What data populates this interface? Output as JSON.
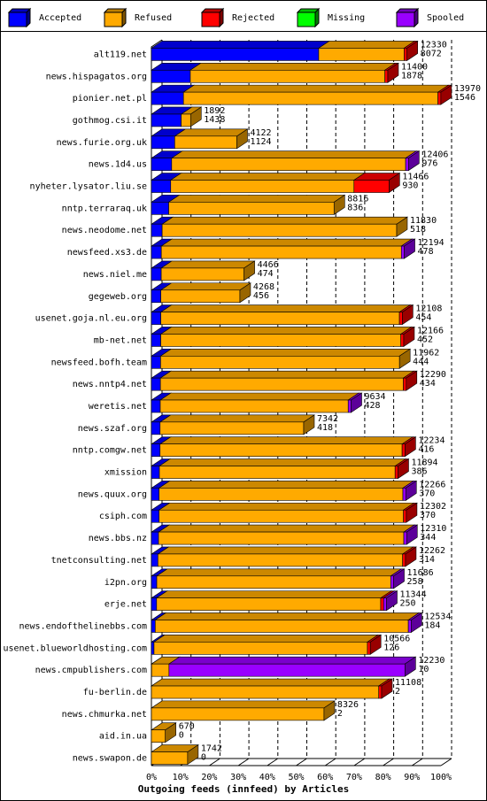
{
  "chart_data": {
    "type": "bar3d_stacked_horizontal",
    "x_label": "Outgoing feeds (innfeed) by Articles",
    "categories": [
      "alt119.net",
      "news.hispagatos.org",
      "pionier.net.pl",
      "gothmog.csi.it",
      "news.furie.org.uk",
      "news.1d4.us",
      "nyheter.lysator.liu.se",
      "nntp.terraraq.uk",
      "news.neodome.net",
      "newsfeed.xs3.de",
      "news.niel.me",
      "gegeweb.org",
      "usenet.goja.nl.eu.org",
      "mb-net.net",
      "newsfeed.bofh.team",
      "news.nntp4.net",
      "weretis.net",
      "news.szaf.org",
      "nntp.comgw.net",
      "xmission",
      "news.quux.org",
      "csiph.com",
      "news.bbs.nz",
      "tnetconsulting.net",
      "i2pn.org",
      "erje.net",
      "news.endofthelinebbs.com",
      "usenet.blueworldhosting.com",
      "news.cmpublishers.com",
      "fu-berlin.de",
      "news.chmurka.net",
      "aid.in.ua",
      "news.swapon.de"
    ],
    "offered": [
      12330,
      11400,
      13970,
      1892,
      4122,
      12406,
      11466,
      8816,
      11830,
      12194,
      4466,
      4268,
      12108,
      12166,
      11962,
      12290,
      9634,
      7342,
      12234,
      11894,
      12266,
      12302,
      12310,
      12262,
      11686,
      11344,
      12534,
      10566,
      12230,
      11108,
      8326,
      670,
      1742
    ],
    "accepted_count": [
      8072,
      1878,
      1546,
      1438,
      1124,
      976,
      930,
      836,
      518,
      478,
      474,
      456,
      454,
      452,
      444,
      434,
      428,
      418,
      416,
      386,
      370,
      370,
      344,
      314,
      258,
      250,
      184,
      126,
      10,
      2,
      2,
      0,
      0
    ],
    "series": [
      {
        "name": "Accepted",
        "color": "#0000ff",
        "values": [
          57.78,
          13.44,
          11.07,
          10.29,
          8.05,
          6.99,
          6.66,
          5.98,
          3.71,
          3.42,
          3.39,
          3.26,
          3.25,
          3.24,
          3.18,
          3.11,
          3.06,
          2.99,
          2.98,
          2.76,
          2.65,
          2.65,
          2.46,
          2.25,
          1.85,
          1.79,
          1.32,
          0.9,
          0.07,
          0.01,
          0.01,
          0,
          0
        ]
      },
      {
        "name": "Refused",
        "color": "#ffaa00",
        "values": [
          29.5,
          67.2,
          87.9,
          3.25,
          21.46,
          80.8,
          63.3,
          57.1,
          81.0,
          82.9,
          28.6,
          27.3,
          82.4,
          82.9,
          82.5,
          83.9,
          64.9,
          49.6,
          83.6,
          81.4,
          84.2,
          84.4,
          84.7,
          84.5,
          80.8,
          77.4,
          87.4,
          73.7,
          6.0,
          78.5,
          59.6,
          4.8,
          12.5
        ]
      },
      {
        "name": "Rejected",
        "color": "#ff0000",
        "values": [
          1,
          1,
          1,
          0,
          0,
          0,
          12.1,
          0,
          0,
          0,
          0,
          0,
          1,
          1,
          0,
          1,
          0,
          0,
          1,
          1,
          0,
          1,
          0,
          1,
          0,
          1,
          0,
          1,
          0,
          1,
          0,
          0,
          0
        ]
      },
      {
        "name": "Missing",
        "color": "#00ff00",
        "values": [
          0,
          0,
          0,
          0,
          0,
          0,
          0,
          0,
          0,
          0,
          0,
          0,
          0,
          0,
          0,
          0,
          0,
          0,
          0,
          0,
          0,
          0,
          0,
          0,
          0,
          0,
          0,
          0,
          0,
          0,
          0,
          0,
          0
        ]
      },
      {
        "name": "Spooled",
        "color": "#9900ff",
        "values": [
          0,
          0,
          0,
          0,
          0,
          1,
          0,
          0,
          0,
          1,
          0,
          0,
          0,
          0,
          0,
          0,
          1,
          0,
          0,
          0,
          1,
          0,
          1,
          0,
          1,
          1,
          1,
          0,
          81.5,
          0,
          0,
          0,
          0
        ]
      }
    ],
    "xlim": [
      0,
      100
    ],
    "xticks": [
      {
        "value": 0,
        "label": "0%"
      },
      {
        "value": 10,
        "label": "10%"
      },
      {
        "value": 20,
        "label": "20%"
      },
      {
        "value": 30,
        "label": "30%"
      },
      {
        "value": 40,
        "label": "40%"
      },
      {
        "value": 50,
        "label": "50%"
      },
      {
        "value": 60,
        "label": "60%"
      },
      {
        "value": 70,
        "label": "70%"
      },
      {
        "value": 80,
        "label": "80%"
      },
      {
        "value": 90,
        "label": "90%"
      },
      {
        "value": 100,
        "label": "100%"
      }
    ],
    "grid": true
  }
}
